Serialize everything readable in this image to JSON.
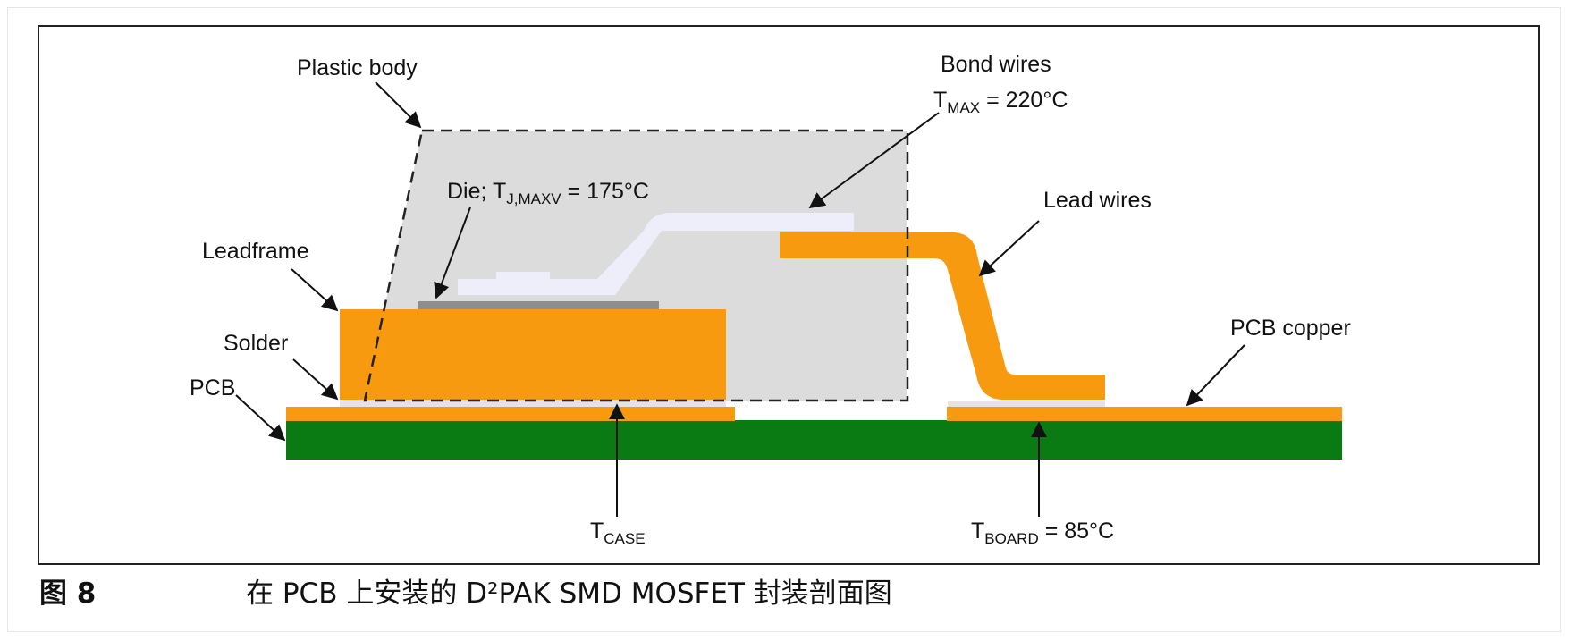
{
  "labels": {
    "plastic_body": "Plastic body",
    "bond_wires": "Bond wires",
    "bond_wires_temp_main": "T",
    "bond_wires_temp_sub": "MAX",
    "bond_wires_temp_value": " = 220°C",
    "die_prefix": "Die; T",
    "die_sub": "J,MAXV",
    "die_value": " = 175°C",
    "lead_wires": "Lead wires",
    "leadframe": "Leadframe",
    "solder": "Solder",
    "pcb": "PCB",
    "pcb_copper": "PCB copper",
    "tcase_main": "T",
    "tcase_sub": "CASE",
    "tboard_main": "T",
    "tboard_sub": "BOARD",
    "tboard_value": " = 85°C"
  },
  "caption": {
    "number": "图 8",
    "title": "在 PCB 上安装的 D²PAK SMD MOSFET 封装剖面图"
  },
  "colors": {
    "copper_orange": "#F89A0F",
    "pcb_green": "#0A7A12",
    "plastic_gray": "#DCDCDC",
    "bond_wire_white": "#EEEEFB",
    "die_gray": "#8E8E8E",
    "solder_light": "#E4E4E4"
  }
}
